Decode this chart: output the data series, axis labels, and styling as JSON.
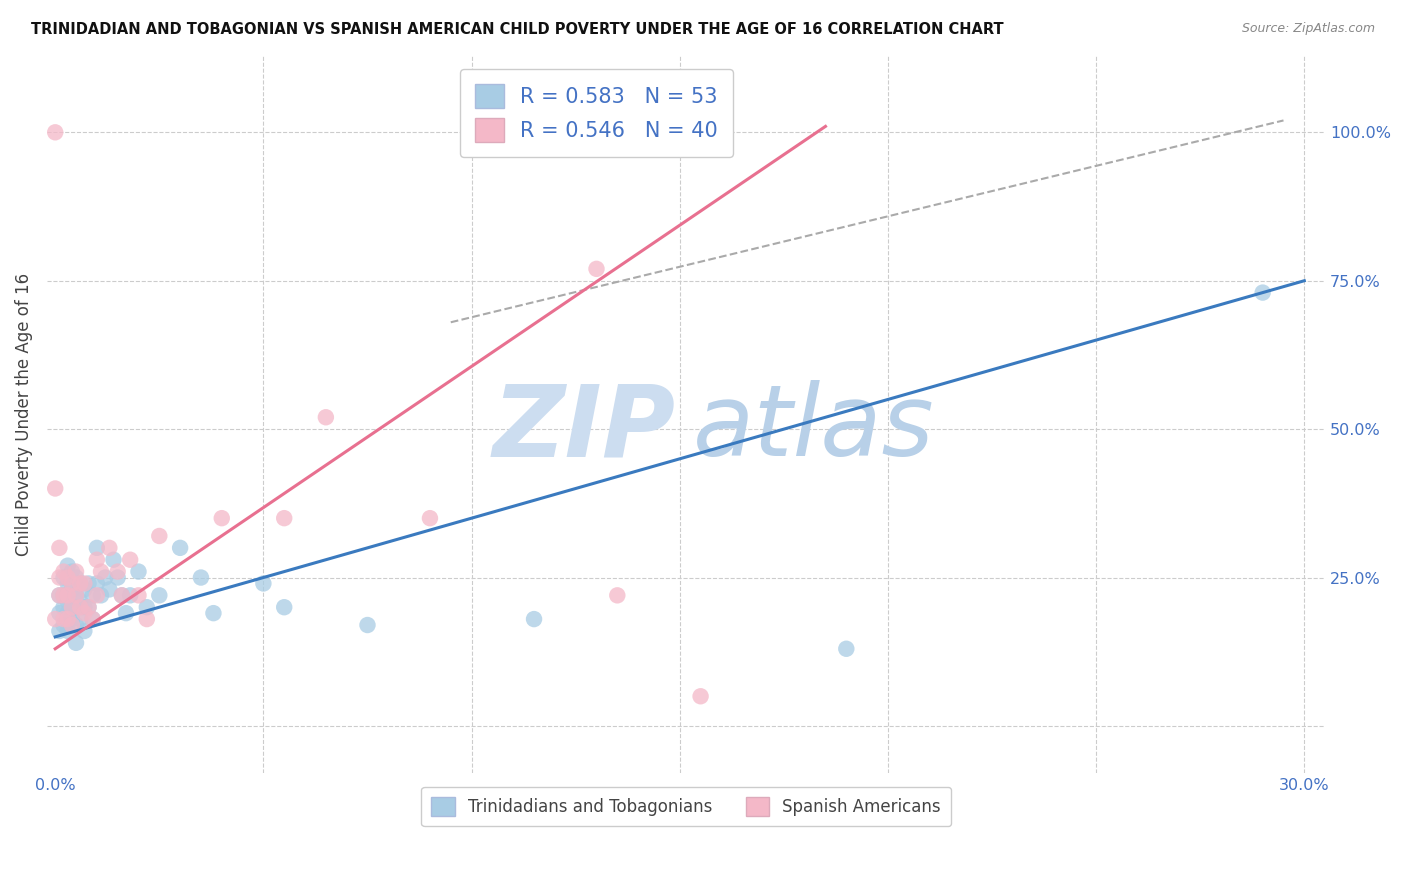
{
  "title": "TRINIDADIAN AND TOBAGONIAN VS SPANISH AMERICAN CHILD POVERTY UNDER THE AGE OF 16 CORRELATION CHART",
  "source": "Source: ZipAtlas.com",
  "ylabel": "Child Poverty Under the Age of 16",
  "xlim": [
    -0.002,
    0.305
  ],
  "ylim": [
    -0.08,
    1.13
  ],
  "x_ticks": [
    0.0,
    0.05,
    0.1,
    0.15,
    0.2,
    0.25,
    0.3
  ],
  "x_tick_labels": [
    "0.0%",
    "",
    "",
    "",
    "",
    "",
    "30.0%"
  ],
  "y_ticks": [
    0.0,
    0.25,
    0.5,
    0.75,
    1.0
  ],
  "y_tick_labels": [
    "",
    "25.0%",
    "50.0%",
    "75.0%",
    "100.0%"
  ],
  "blue_R": 0.583,
  "blue_N": 53,
  "pink_R": 0.546,
  "pink_N": 40,
  "blue_color": "#a8cce4",
  "pink_color": "#f4b8c8",
  "blue_line_color": "#3a7abf",
  "pink_line_color": "#e87090",
  "grid_color": "#cccccc",
  "tick_color": "#4472c4",
  "background_color": "#ffffff",
  "blue_scatter_x": [
    0.001,
    0.001,
    0.001,
    0.002,
    0.002,
    0.002,
    0.002,
    0.003,
    0.003,
    0.003,
    0.003,
    0.003,
    0.004,
    0.004,
    0.004,
    0.004,
    0.005,
    0.005,
    0.005,
    0.005,
    0.005,
    0.006,
    0.006,
    0.006,
    0.007,
    0.007,
    0.007,
    0.008,
    0.008,
    0.009,
    0.009,
    0.01,
    0.01,
    0.011,
    0.012,
    0.013,
    0.014,
    0.015,
    0.016,
    0.017,
    0.018,
    0.02,
    0.022,
    0.025,
    0.03,
    0.035,
    0.038,
    0.05,
    0.055,
    0.075,
    0.115,
    0.19,
    0.29
  ],
  "blue_scatter_y": [
    0.22,
    0.19,
    0.16,
    0.25,
    0.22,
    0.2,
    0.17,
    0.27,
    0.24,
    0.21,
    0.19,
    0.16,
    0.26,
    0.23,
    0.2,
    0.18,
    0.25,
    0.22,
    0.2,
    0.17,
    0.14,
    0.24,
    0.21,
    0.18,
    0.23,
    0.2,
    0.16,
    0.24,
    0.2,
    0.22,
    0.18,
    0.3,
    0.24,
    0.22,
    0.25,
    0.23,
    0.28,
    0.25,
    0.22,
    0.19,
    0.22,
    0.26,
    0.2,
    0.22,
    0.3,
    0.25,
    0.19,
    0.24,
    0.2,
    0.17,
    0.18,
    0.13,
    0.73
  ],
  "pink_scatter_x": [
    0.0,
    0.0,
    0.001,
    0.001,
    0.001,
    0.002,
    0.002,
    0.002,
    0.003,
    0.003,
    0.003,
    0.004,
    0.004,
    0.004,
    0.005,
    0.005,
    0.006,
    0.006,
    0.007,
    0.007,
    0.008,
    0.009,
    0.01,
    0.01,
    0.011,
    0.013,
    0.015,
    0.016,
    0.018,
    0.02,
    0.022,
    0.025,
    0.04,
    0.055,
    0.09,
    0.135,
    0.155,
    0.0,
    0.065,
    0.13
  ],
  "pink_scatter_y": [
    0.4,
    0.18,
    0.3,
    0.25,
    0.22,
    0.26,
    0.22,
    0.18,
    0.25,
    0.22,
    0.18,
    0.24,
    0.2,
    0.17,
    0.26,
    0.22,
    0.24,
    0.2,
    0.24,
    0.19,
    0.2,
    0.18,
    0.28,
    0.22,
    0.26,
    0.3,
    0.26,
    0.22,
    0.28,
    0.22,
    0.18,
    0.32,
    0.35,
    0.35,
    0.35,
    0.22,
    0.05,
    1.0,
    0.52,
    0.77
  ],
  "blue_line_x0": 0.0,
  "blue_line_x1": 0.3,
  "blue_line_y0": 0.15,
  "blue_line_y1": 0.75,
  "pink_line_x0": 0.0,
  "pink_line_x1": 0.185,
  "pink_line_y0": 0.13,
  "pink_line_y1": 1.01,
  "dash_line_x0": 0.095,
  "dash_line_x1": 0.295,
  "dash_line_y0": 0.68,
  "dash_line_y1": 1.02
}
